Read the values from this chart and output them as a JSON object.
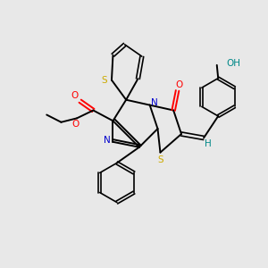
{
  "background_color": "#e8e8e8",
  "bond_color": "#000000",
  "N_color": "#0000cc",
  "S_color": "#ccaa00",
  "O_color": "#ff0000",
  "H_color": "#008888",
  "figsize": [
    3.0,
    3.0
  ],
  "dpi": 100,
  "xlim": [
    0,
    10
  ],
  "ylim": [
    0,
    10
  ]
}
